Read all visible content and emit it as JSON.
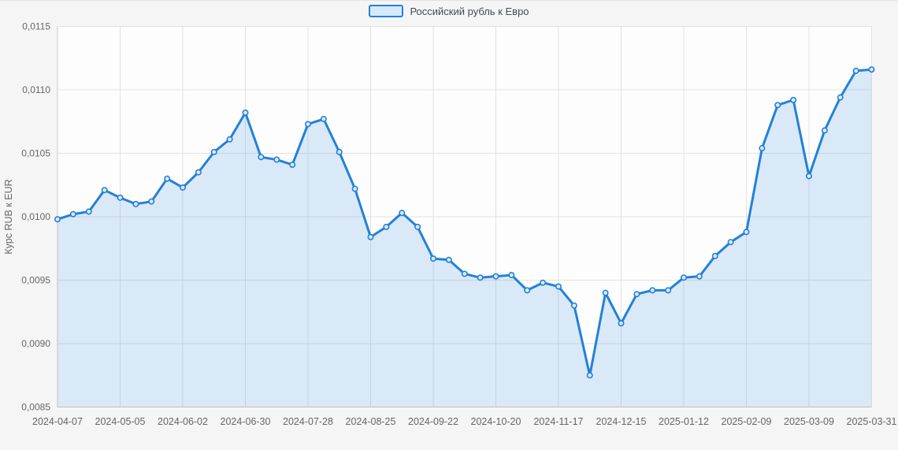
{
  "legend": {
    "label": "Российский рубль к Евро",
    "swatch_fill": "#d6e9fa",
    "swatch_border": "#2381d9",
    "text_color": "#3a4e60"
  },
  "chart_data": {
    "type": "area",
    "title": "",
    "xlabel": "",
    "ylabel": "Курс RUB к EUR",
    "legend_position": "top",
    "grid": true,
    "ylim": [
      0.0085,
      0.0115
    ],
    "y_ticks": [
      {
        "label": "0,0115",
        "value": 0.0115
      },
      {
        "label": "0,0110",
        "value": 0.011
      },
      {
        "label": "0,0105",
        "value": 0.0105
      },
      {
        "label": "0,0100",
        "value": 0.01
      },
      {
        "label": "0,0095",
        "value": 0.0095
      },
      {
        "label": "0,0090",
        "value": 0.009
      },
      {
        "label": "0,0085",
        "value": 0.0085
      }
    ],
    "x_ticks": [
      {
        "label": "2024-04-07",
        "index": 0
      },
      {
        "label": "2024-05-05",
        "index": 4
      },
      {
        "label": "2024-06-02",
        "index": 8
      },
      {
        "label": "2024-06-30",
        "index": 12
      },
      {
        "label": "2024-07-28",
        "index": 16
      },
      {
        "label": "2024-08-25",
        "index": 20
      },
      {
        "label": "2024-09-22",
        "index": 24
      },
      {
        "label": "2024-10-20",
        "index": 28
      },
      {
        "label": "2024-11-17",
        "index": 32
      },
      {
        "label": "2024-12-15",
        "index": 36
      },
      {
        "label": "2025-01-12",
        "index": 40
      },
      {
        "label": "2025-02-09",
        "index": 44
      },
      {
        "label": "2025-03-09",
        "index": 48
      },
      {
        "label": "2025-03-31",
        "index": 52
      }
    ],
    "series": [
      {
        "name": "Российский рубль к Евро",
        "values": [
          0.00998,
          0.01002,
          0.01004,
          0.01021,
          0.01015,
          0.0101,
          0.01012,
          0.0103,
          0.01023,
          0.01035,
          0.01051,
          0.01061,
          0.01082,
          0.01047,
          0.01045,
          0.01041,
          0.01073,
          0.01077,
          0.01051,
          0.01022,
          0.00984,
          0.00992,
          0.01003,
          0.00992,
          0.00967,
          0.00966,
          0.00955,
          0.00952,
          0.00953,
          0.00954,
          0.00942,
          0.00948,
          0.00945,
          0.0093,
          0.00875,
          0.0094,
          0.00916,
          0.00939,
          0.00942,
          0.00942,
          0.00952,
          0.00953,
          0.00969,
          0.0098,
          0.00988,
          0.01054,
          0.01088,
          0.01092,
          0.01032,
          0.01068,
          0.01094,
          0.01115,
          0.01116
        ]
      }
    ],
    "colors": {
      "line": "#2381d9",
      "area_fill": "rgba(35,129,217,0.16)",
      "marker_fill": "#dcebf9",
      "grid": "#e2e2e2",
      "axis_line": "#c9c9c9",
      "plot_background": "#fdfdfd",
      "tick_text": "#666666"
    }
  }
}
